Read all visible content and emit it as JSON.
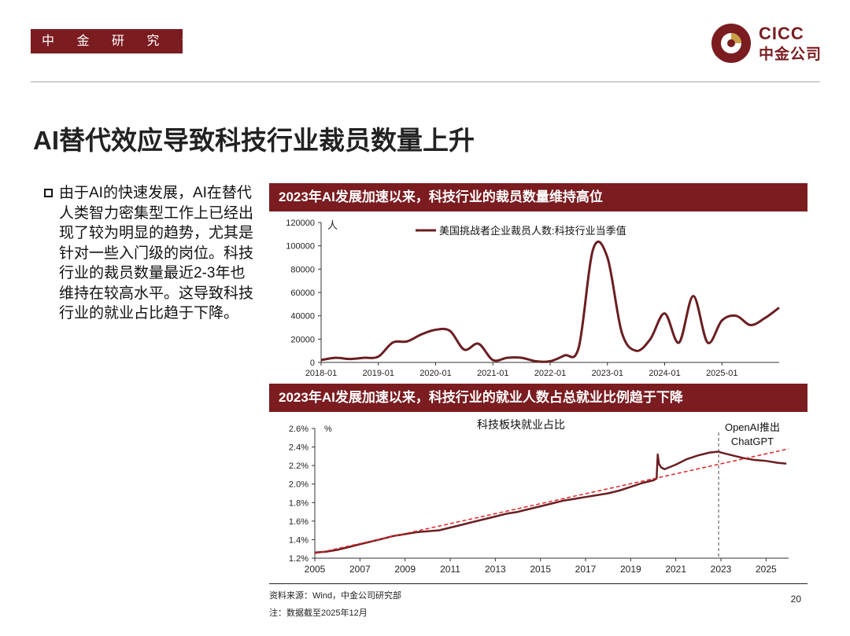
{
  "header": {
    "department": "中 金 研 究 部",
    "logo_line1": "CICC",
    "logo_line2": "中金公司"
  },
  "page_title": "AI替代效应导致科技行业裁员数量上升",
  "bullet_text": "由于AI的快速发展，AI在替代人类智力密集型工作上已经出现了较为明显的趋势，尤其是针对一些入门级的岗位。科技行业的裁员数量最近2-3年也维持在较高水平。这导致科技行业的就业占比趋于下降。",
  "colors": {
    "brand": "#7a1c20",
    "series_line": "#6b1e22",
    "trend": "#e0262b",
    "marker": "#8a8a8a"
  },
  "footer": {
    "source": "资料来源：Wind，中金公司研究部",
    "note": "注：数据截至2025年12月",
    "page_number": "20"
  },
  "chart_data": [
    {
      "type": "line",
      "banner": "2023年AI发展加速以来，科技行业的裁员数量维持高位",
      "ylabel": "人",
      "ylim": [
        0,
        120000
      ],
      "yticks": [
        0,
        20000,
        40000,
        60000,
        80000,
        100000,
        120000
      ],
      "xlim": [
        2018.0,
        2026.0
      ],
      "xticks": [
        2018.0,
        2019.0,
        2020.0,
        2021.0,
        2022.0,
        2023.0,
        2024.0,
        2025.0
      ],
      "xtick_labels": [
        "2018-01",
        "2019-01",
        "2020-01",
        "2021-01",
        "2022-01",
        "2023-01",
        "2024-01",
        "2025-01"
      ],
      "legend_position": "top",
      "series": [
        {
          "name": "美国挑战者企业裁员人数:科技行业当季值",
          "x": [
            2018.0,
            2018.25,
            2018.5,
            2018.75,
            2019.0,
            2019.25,
            2019.5,
            2019.75,
            2020.0,
            2020.25,
            2020.5,
            2020.75,
            2021.0,
            2021.25,
            2021.5,
            2021.75,
            2022.0,
            2022.25,
            2022.5,
            2022.75,
            2023.0,
            2023.25,
            2023.5,
            2023.75,
            2024.0,
            2024.25,
            2024.5,
            2024.75,
            2025.0,
            2025.25,
            2025.5,
            2025.75,
            2026.0
          ],
          "values": [
            2000,
            4000,
            3000,
            4000,
            5000,
            17000,
            18000,
            24000,
            28000,
            27000,
            11000,
            16000,
            2000,
            4000,
            4000,
            1000,
            1000,
            6000,
            13000,
            97000,
            90000,
            26000,
            10000,
            20000,
            42000,
            17000,
            57000,
            17000,
            36000,
            40000,
            32000,
            38000,
            47000
          ]
        }
      ]
    },
    {
      "type": "line",
      "banner": "2023年AI发展加速以来，科技行业的就业人数占总就业比例趋于下降",
      "title": "科技板块就业占比",
      "ylabel": "%",
      "ylim": [
        1.2,
        2.6
      ],
      "yticks": [
        1.2,
        1.4,
        1.6,
        1.8,
        2.0,
        2.2,
        2.4,
        2.6
      ],
      "ytick_labels": [
        "1.2%",
        "1.4%",
        "1.6%",
        "1.8%",
        "2.0%",
        "2.2%",
        "2.4%",
        "2.6%"
      ],
      "xlim": [
        2005,
        2026
      ],
      "xticks": [
        2005,
        2007,
        2009,
        2011,
        2013,
        2015,
        2017,
        2019,
        2021,
        2023,
        2025
      ],
      "grid": false,
      "annotation": {
        "text_line1": "OpenAI推出",
        "text_line2": "ChatGPT",
        "x": 2022.9
      },
      "trend": {
        "x": [
          2005,
          2026
        ],
        "values": [
          1.25,
          2.38
        ]
      },
      "series": [
        {
          "name": "",
          "x": [
            2005.0,
            2005.5,
            2006.0,
            2006.5,
            2007.0,
            2007.5,
            2008.0,
            2008.5,
            2009.0,
            2009.5,
            2010.0,
            2010.5,
            2011.0,
            2011.5,
            2012.0,
            2012.5,
            2013.0,
            2013.5,
            2014.0,
            2014.5,
            2015.0,
            2015.5,
            2016.0,
            2016.5,
            2017.0,
            2017.5,
            2018.0,
            2018.5,
            2019.0,
            2019.5,
            2020.0,
            2020.15,
            2020.2,
            2020.25,
            2020.35,
            2020.5,
            2021.0,
            2021.5,
            2022.0,
            2022.5,
            2022.9,
            2023.0,
            2023.5,
            2024.0,
            2024.5,
            2025.0,
            2025.5,
            2025.9
          ],
          "values": [
            1.26,
            1.27,
            1.29,
            1.32,
            1.35,
            1.38,
            1.41,
            1.44,
            1.46,
            1.48,
            1.49,
            1.5,
            1.53,
            1.56,
            1.59,
            1.62,
            1.65,
            1.68,
            1.7,
            1.73,
            1.76,
            1.79,
            1.82,
            1.84,
            1.86,
            1.88,
            1.9,
            1.93,
            1.97,
            2.01,
            2.04,
            2.06,
            2.32,
            2.22,
            2.18,
            2.16,
            2.21,
            2.27,
            2.31,
            2.34,
            2.35,
            2.34,
            2.31,
            2.28,
            2.26,
            2.25,
            2.23,
            2.22
          ]
        }
      ]
    }
  ]
}
